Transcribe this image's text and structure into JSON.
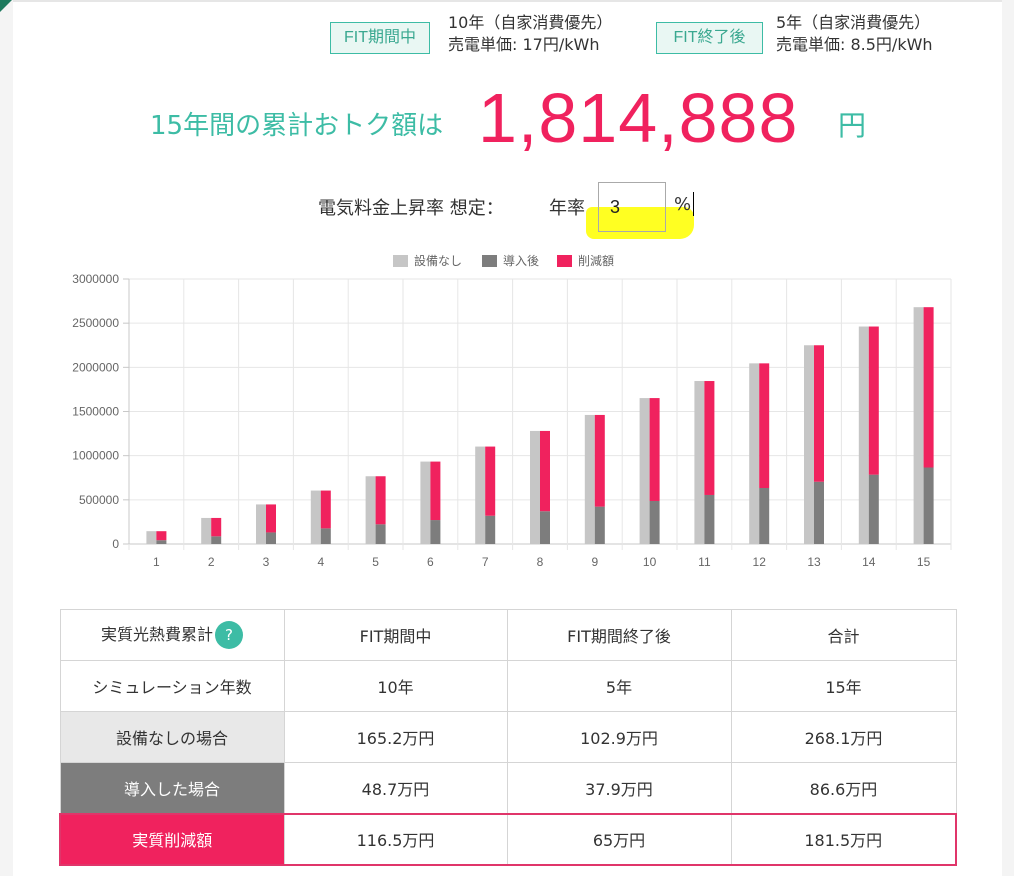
{
  "fit": {
    "during": {
      "badge": "FIT期間中",
      "line1": "10年（自家消費優先）",
      "line2": "売電単価: 17円/kWh"
    },
    "after": {
      "badge": "FIT終了後",
      "line1": "5年（自家消費優先）",
      "line2": "売電単価: 8.5円/kWh"
    }
  },
  "total": {
    "label": "15年間の累計おトク額は",
    "value": "1,814,888",
    "unit": "円"
  },
  "rate": {
    "label": "電気料金上昇率 想定：",
    "year_label": "年率",
    "value": "3",
    "unit": "%"
  },
  "colors": {
    "accent": "#3dbca5",
    "red": "#f0225e",
    "light_gray": "#c6c6c6",
    "dark_gray": "#7d7d7d"
  },
  "chart_data": {
    "type": "bar",
    "categories": [
      "1",
      "2",
      "3",
      "4",
      "5",
      "6",
      "7",
      "8",
      "9",
      "10",
      "11",
      "12",
      "13",
      "14",
      "15"
    ],
    "series": [
      {
        "name": "設備なし",
        "color": "#c6c6c6",
        "values": [
          145000,
          295000,
          448000,
          605000,
          767000,
          933000,
          1103000,
          1280000,
          1461000,
          1652000,
          1845000,
          2045000,
          2250000,
          2462000,
          2681000
        ]
      },
      {
        "name": "導入後",
        "color": "#7d7d7d",
        "values": [
          43000,
          87000,
          131000,
          177000,
          223000,
          271000,
          320000,
          371000,
          423000,
          487000,
          555000,
          634000,
          705000,
          785000,
          866000
        ]
      },
      {
        "name": "削減額",
        "color": "#f0225e",
        "values": [
          102000,
          208000,
          317000,
          428000,
          544000,
          662000,
          783000,
          909000,
          1038000,
          1165000,
          1290000,
          1411000,
          1545000,
          1677000,
          1815000
        ]
      }
    ],
    "ylim": [
      0,
      3000000
    ],
    "yticks": [
      "3000000",
      "2500000",
      "2000000",
      "1500000",
      "1000000",
      "500000",
      "0"
    ],
    "grid": true,
    "legend_position": "top-center"
  },
  "table": {
    "header": {
      "label": "実質光熱費累計",
      "help": "?",
      "col1": "FIT期間中",
      "col2": "FIT期間終了後",
      "col3": "合計"
    },
    "rows": [
      {
        "label": "シミュレーション年数",
        "v1": "10年",
        "v2": "5年",
        "v3": "15年"
      },
      {
        "label": "設備なしの場合",
        "v1": "165.2万円",
        "v2": "102.9万円",
        "v3": "268.1万円"
      },
      {
        "label": "導入した場合",
        "v1": "48.7万円",
        "v2": "37.9万円",
        "v3": "86.6万円"
      },
      {
        "label": "実質削減額",
        "v1": "116.5万円",
        "v2": "65万円",
        "v3": "181.5万円"
      }
    ]
  }
}
